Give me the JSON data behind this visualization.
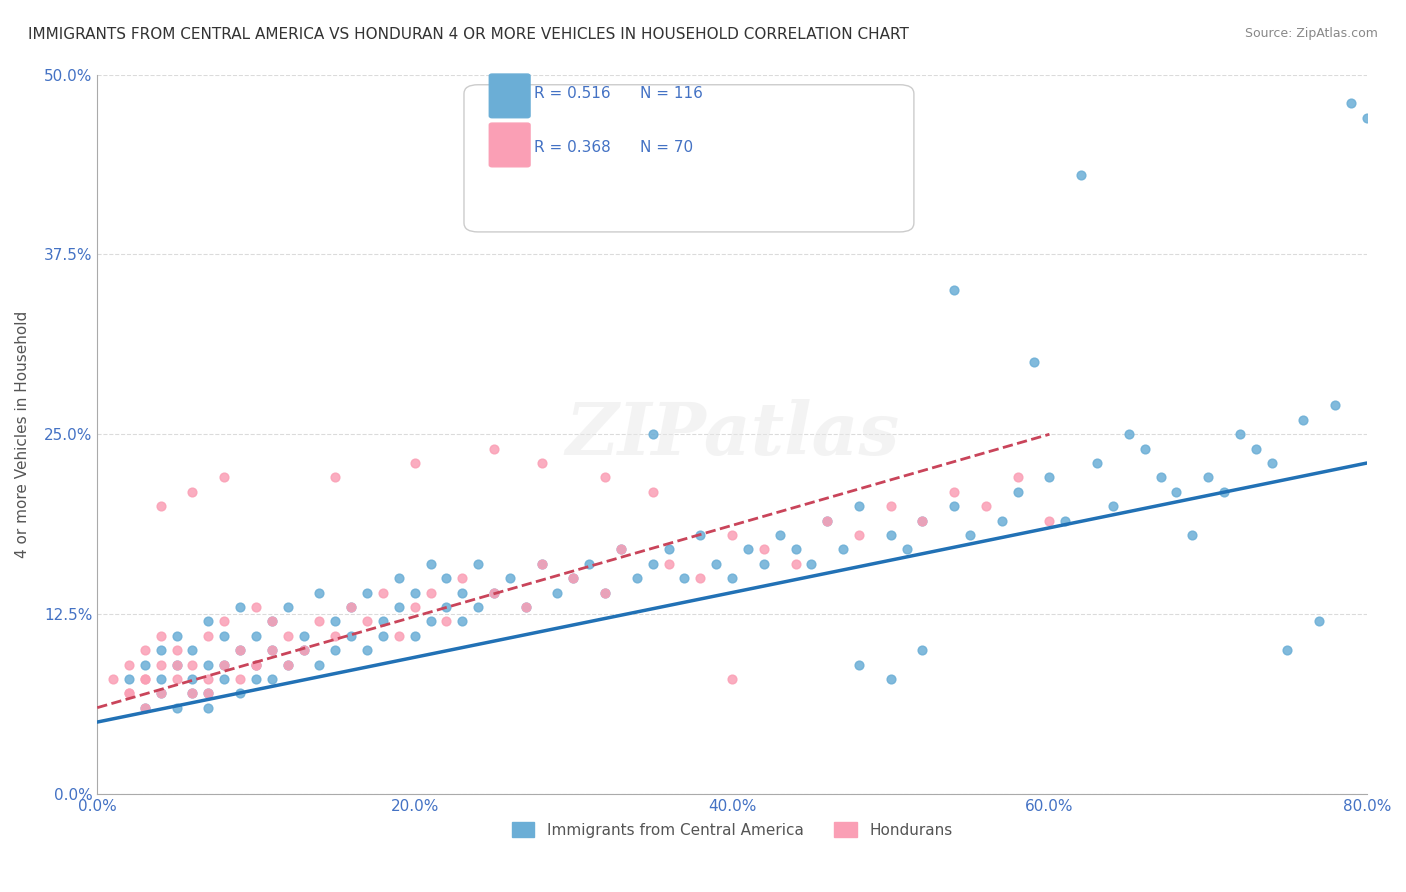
{
  "title": "IMMIGRANTS FROM CENTRAL AMERICA VS HONDURAN 4 OR MORE VEHICLES IN HOUSEHOLD CORRELATION CHART",
  "source": "Source: ZipAtlas.com",
  "xlabel": "",
  "ylabel": "4 or more Vehicles in Household",
  "watermark": "ZIPatlas",
  "xlim": [
    0.0,
    0.8
  ],
  "ylim": [
    0.0,
    0.5
  ],
  "xticks": [
    0.0,
    0.2,
    0.4,
    0.6,
    0.8
  ],
  "yticks": [
    0.0,
    0.125,
    0.25,
    0.375,
    0.5
  ],
  "xtick_labels": [
    "0.0%",
    "20.0%",
    "40.0%",
    "60.0%",
    "80.0%"
  ],
  "ytick_labels": [
    "0.0%",
    "12.5%",
    "25.0%",
    "37.5%",
    "50.0%"
  ],
  "blue_color": "#6baed6",
  "pink_color": "#fa9fb5",
  "blue_line_color": "#2171b5",
  "pink_line_color": "#c9445a",
  "legend_R1": "R = 0.516",
  "legend_N1": "N = 116",
  "legend_R2": "R = 0.368",
  "legend_N2": "N = 70",
  "legend_label1": "Immigrants from Central America",
  "legend_label2": "Hondurans",
  "title_fontsize": 11,
  "axis_color": "#4472c4",
  "tick_color": "#4472c4",
  "blue_scatter_x": [
    0.02,
    0.03,
    0.03,
    0.04,
    0.04,
    0.04,
    0.05,
    0.05,
    0.05,
    0.06,
    0.06,
    0.06,
    0.07,
    0.07,
    0.07,
    0.07,
    0.08,
    0.08,
    0.08,
    0.09,
    0.09,
    0.09,
    0.1,
    0.1,
    0.1,
    0.11,
    0.11,
    0.11,
    0.12,
    0.12,
    0.13,
    0.13,
    0.14,
    0.14,
    0.15,
    0.15,
    0.16,
    0.16,
    0.17,
    0.17,
    0.18,
    0.18,
    0.19,
    0.19,
    0.2,
    0.2,
    0.21,
    0.21,
    0.22,
    0.22,
    0.23,
    0.23,
    0.24,
    0.24,
    0.25,
    0.26,
    0.27,
    0.28,
    0.29,
    0.3,
    0.31,
    0.32,
    0.33,
    0.34,
    0.35,
    0.36,
    0.37,
    0.38,
    0.39,
    0.4,
    0.41,
    0.42,
    0.43,
    0.44,
    0.45,
    0.46,
    0.47,
    0.48,
    0.5,
    0.51,
    0.52,
    0.54,
    0.55,
    0.57,
    0.58,
    0.6,
    0.61,
    0.63,
    0.64,
    0.66,
    0.68,
    0.7,
    0.72,
    0.74,
    0.76,
    0.78,
    0.54,
    0.59,
    0.62,
    0.65,
    0.67,
    0.69,
    0.71,
    0.73,
    0.75,
    0.77,
    0.79,
    0.8,
    0.48,
    0.5,
    0.52,
    0.35
  ],
  "blue_scatter_y": [
    0.08,
    0.06,
    0.09,
    0.07,
    0.1,
    0.08,
    0.06,
    0.09,
    0.11,
    0.07,
    0.1,
    0.08,
    0.06,
    0.09,
    0.12,
    0.07,
    0.08,
    0.11,
    0.09,
    0.07,
    0.1,
    0.13,
    0.08,
    0.11,
    0.09,
    0.1,
    0.12,
    0.08,
    0.09,
    0.13,
    0.1,
    0.11,
    0.09,
    0.14,
    0.1,
    0.12,
    0.11,
    0.13,
    0.1,
    0.14,
    0.12,
    0.11,
    0.13,
    0.15,
    0.11,
    0.14,
    0.12,
    0.16,
    0.13,
    0.15,
    0.14,
    0.12,
    0.16,
    0.13,
    0.14,
    0.15,
    0.13,
    0.16,
    0.14,
    0.15,
    0.16,
    0.14,
    0.17,
    0.15,
    0.16,
    0.17,
    0.15,
    0.18,
    0.16,
    0.15,
    0.17,
    0.16,
    0.18,
    0.17,
    0.16,
    0.19,
    0.17,
    0.2,
    0.18,
    0.17,
    0.19,
    0.2,
    0.18,
    0.19,
    0.21,
    0.22,
    0.19,
    0.23,
    0.2,
    0.24,
    0.21,
    0.22,
    0.25,
    0.23,
    0.26,
    0.27,
    0.35,
    0.3,
    0.43,
    0.25,
    0.22,
    0.18,
    0.21,
    0.24,
    0.1,
    0.12,
    0.48,
    0.47,
    0.09,
    0.08,
    0.1,
    0.25
  ],
  "pink_scatter_x": [
    0.01,
    0.02,
    0.02,
    0.03,
    0.03,
    0.03,
    0.04,
    0.04,
    0.04,
    0.05,
    0.05,
    0.06,
    0.06,
    0.07,
    0.07,
    0.08,
    0.08,
    0.09,
    0.09,
    0.1,
    0.1,
    0.11,
    0.11,
    0.12,
    0.12,
    0.13,
    0.14,
    0.15,
    0.16,
    0.17,
    0.18,
    0.19,
    0.2,
    0.21,
    0.22,
    0.23,
    0.25,
    0.27,
    0.28,
    0.3,
    0.32,
    0.33,
    0.36,
    0.38,
    0.4,
    0.42,
    0.44,
    0.46,
    0.48,
    0.5,
    0.52,
    0.54,
    0.56,
    0.58,
    0.6,
    0.32,
    0.25,
    0.28,
    0.35,
    0.4,
    0.2,
    0.15,
    0.1,
    0.08,
    0.06,
    0.04,
    0.05,
    0.07,
    0.03,
    0.02
  ],
  "pink_scatter_y": [
    0.08,
    0.07,
    0.09,
    0.06,
    0.1,
    0.08,
    0.07,
    0.09,
    0.11,
    0.08,
    0.1,
    0.07,
    0.09,
    0.08,
    0.11,
    0.09,
    0.12,
    0.08,
    0.1,
    0.09,
    0.13,
    0.1,
    0.12,
    0.09,
    0.11,
    0.1,
    0.12,
    0.11,
    0.13,
    0.12,
    0.14,
    0.11,
    0.13,
    0.14,
    0.12,
    0.15,
    0.14,
    0.13,
    0.16,
    0.15,
    0.14,
    0.17,
    0.16,
    0.15,
    0.18,
    0.17,
    0.16,
    0.19,
    0.18,
    0.2,
    0.19,
    0.21,
    0.2,
    0.22,
    0.19,
    0.22,
    0.24,
    0.23,
    0.21,
    0.08,
    0.23,
    0.22,
    0.09,
    0.22,
    0.21,
    0.2,
    0.09,
    0.07,
    0.08,
    0.07
  ],
  "blue_line_x": [
    0.0,
    0.8
  ],
  "blue_line_y": [
    0.05,
    0.23
  ],
  "pink_line_x": [
    0.0,
    0.6
  ],
  "pink_line_y": [
    0.06,
    0.25
  ],
  "background_color": "#ffffff",
  "grid_color": "#cccccc"
}
